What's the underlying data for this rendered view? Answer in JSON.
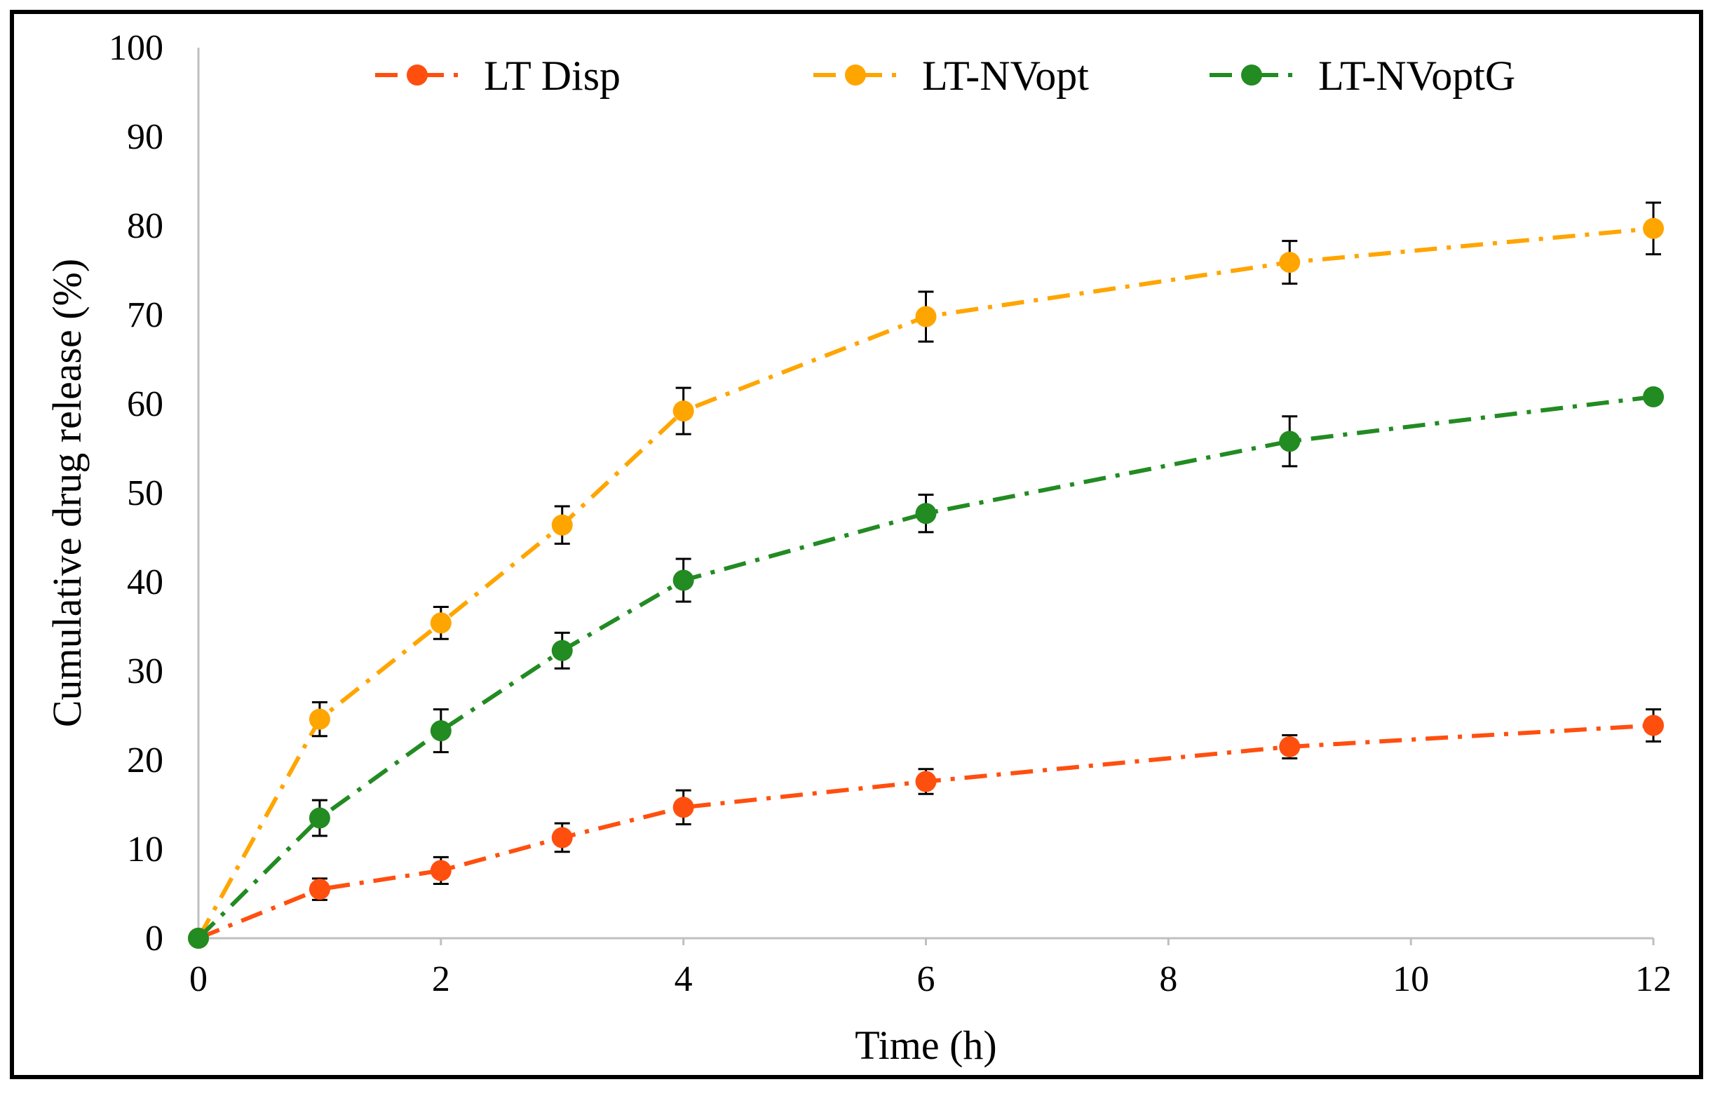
{
  "chart_data": {
    "type": "line",
    "title": "",
    "xlabel": "Time (h)",
    "ylabel": "Cumulative drug release (%)",
    "xlim": [
      0,
      12
    ],
    "ylim": [
      0,
      100
    ],
    "x_ticks": [
      "0",
      "2",
      "4",
      "6",
      "8",
      "10",
      "12"
    ],
    "y_ticks": [
      "0",
      "10",
      "20",
      "30",
      "40",
      "50",
      "60",
      "70",
      "80",
      "90",
      "100"
    ],
    "grid": false,
    "legend_position": "top",
    "series": [
      {
        "name": "LT Disp",
        "color": "#ff4f0f",
        "x": [
          0,
          1,
          2,
          3,
          4,
          6,
          9,
          12
        ],
        "values": [
          0,
          5.5,
          7.6,
          11.3,
          14.7,
          17.6,
          21.5,
          23.9
        ],
        "errors": [
          0,
          1.2,
          1.5,
          1.6,
          1.9,
          1.4,
          1.3,
          1.8
        ]
      },
      {
        "name": "LT-NVopt",
        "color": "#ffa500",
        "x": [
          0,
          1,
          2,
          3,
          4,
          6,
          9,
          12
        ],
        "values": [
          0,
          24.6,
          35.4,
          46.4,
          59.2,
          69.8,
          75.9,
          79.7
        ],
        "errors": [
          0,
          1.9,
          1.8,
          2.1,
          2.6,
          2.8,
          2.4,
          2.9
        ]
      },
      {
        "name": "LT-NVoptG",
        "color": "#228b22",
        "x": [
          0,
          1,
          2,
          3,
          4,
          6,
          9,
          12
        ],
        "values": [
          0,
          13.5,
          23.3,
          32.3,
          40.2,
          47.7,
          55.8,
          60.8
        ],
        "errors": [
          0,
          2.0,
          2.4,
          2.0,
          2.4,
          2.1,
          2.8,
          0
        ]
      }
    ]
  }
}
